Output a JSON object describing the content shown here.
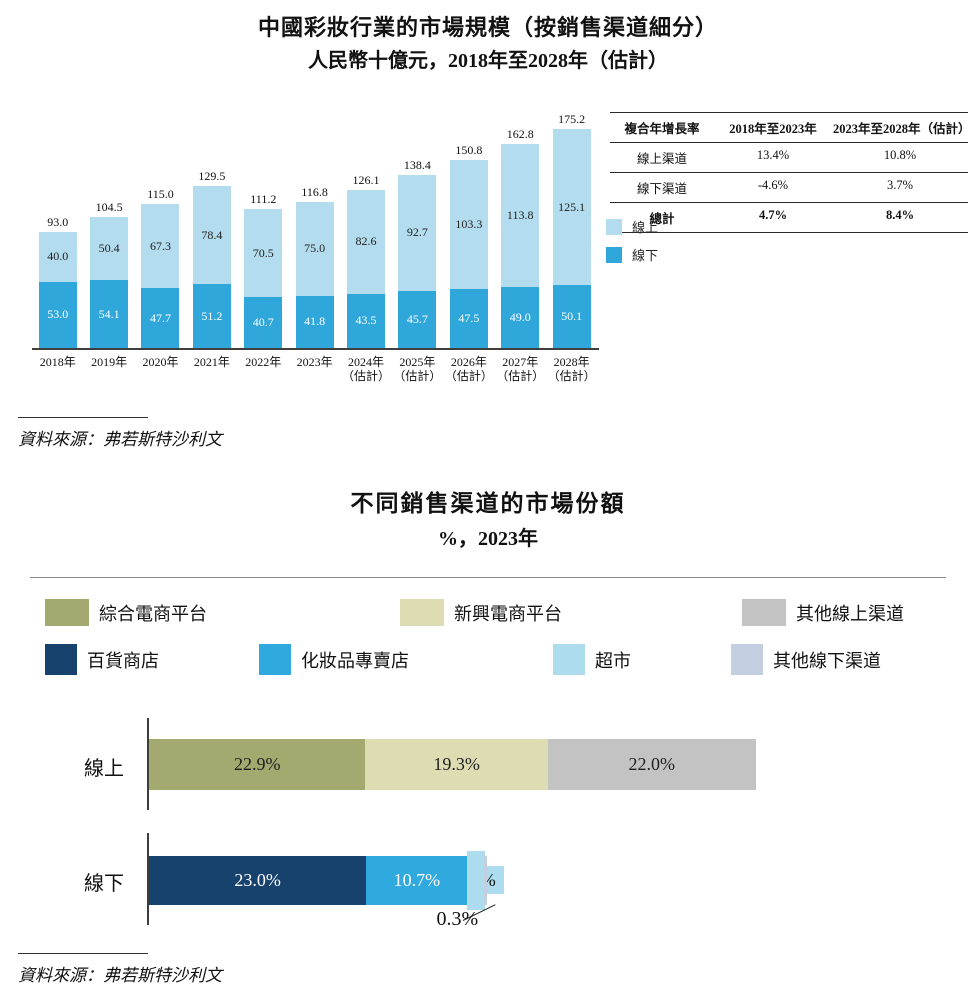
{
  "page": {
    "source": "資料來源：弗若斯特沙利文"
  },
  "cagr_table": {
    "headers": [
      "複合年增長率",
      "2018年至2023年",
      "2023年至2028年（估計）"
    ],
    "rows": [
      {
        "label": "線上渠道",
        "p1": "13.4%",
        "p2": "10.8%",
        "bold": false
      },
      {
        "label": "線下渠道",
        "p1": "-4.6%",
        "p2": "3.7%",
        "bold": false
      },
      {
        "label": "總計",
        "p1": "4.7%",
        "p2": "8.4%",
        "bold": true
      }
    ]
  },
  "chart_data": [
    {
      "type": "bar",
      "stacked": true,
      "title": "中國彩妝行業的市場規模（按銷售渠道細分）",
      "subtitle": "人民幣十億元，2018年至2028年（估計）",
      "unit": "人民幣十億元",
      "legend_position": "right",
      "categories": [
        {
          "line1": "2018年",
          "line2": ""
        },
        {
          "line1": "2019年",
          "line2": ""
        },
        {
          "line1": "2020年",
          "line2": ""
        },
        {
          "line1": "2021年",
          "line2": ""
        },
        {
          "line1": "2022年",
          "line2": ""
        },
        {
          "line1": "2023年",
          "line2": ""
        },
        {
          "line1": "2024年",
          "line2": "（估計）"
        },
        {
          "line1": "2025年",
          "line2": "（估計）"
        },
        {
          "line1": "2026年",
          "line2": "（估計）"
        },
        {
          "line1": "2027年",
          "line2": "（估計）"
        },
        {
          "line1": "2028年",
          "line2": "（估計）"
        }
      ],
      "series": [
        {
          "name": "線上",
          "color": "#b3dcee",
          "label_color": "#1f1f1f",
          "values": [
            40.0,
            50.4,
            67.3,
            78.4,
            70.5,
            75.0,
            82.6,
            92.7,
            103.3,
            113.8,
            125.1
          ]
        },
        {
          "name": "線下",
          "color": "#2fa7db",
          "label_color": "#ffffff",
          "values": [
            53.0,
            54.1,
            47.7,
            51.2,
            40.7,
            41.8,
            43.5,
            45.7,
            47.5,
            49.0,
            50.1
          ]
        }
      ],
      "totals": [
        93.0,
        104.5,
        115.0,
        129.5,
        111.2,
        116.8,
        126.1,
        138.4,
        150.8,
        162.8,
        175.2
      ]
    },
    {
      "type": "bar",
      "orientation": "horizontal",
      "stacked": true,
      "title": "不同銷售渠道的市場份額",
      "subtitle": "%，2023年",
      "legend_rows": [
        [
          {
            "name": "綜合電商平台",
            "color": "#a3a96f"
          },
          {
            "name": "新興電商平台",
            "color": "#dedcb2"
          },
          {
            "name": "其他線上渠道",
            "color": "#c3c3c3"
          }
        ],
        [
          {
            "name": "百貨商店",
            "color": "#17426e"
          },
          {
            "name": "化妝品專賣店",
            "color": "#2fa9de"
          },
          {
            "name": "超市",
            "color": "#addcee"
          },
          {
            "name": "其他線下渠道",
            "color": "#c3cfe0"
          }
        ]
      ],
      "rows": [
        {
          "label": "線上",
          "segments": [
            {
              "name": "綜合電商平台",
              "value": 22.9,
              "color": "#a3a96f",
              "label_color": "#1f1f1f"
            },
            {
              "name": "新興電商平台",
              "value": 19.3,
              "color": "#dedcb2",
              "label_color": "#1f1f1f"
            },
            {
              "name": "其他線上渠道",
              "value": 22.0,
              "color": "#c3c3c3",
              "label_color": "#1f1f1f"
            }
          ]
        },
        {
          "label": "線下",
          "segments": [
            {
              "name": "百貨商店",
              "value": 23.0,
              "color": "#17426e",
              "label_color": "#ffffff"
            },
            {
              "name": "化妝品專賣店",
              "value": 10.7,
              "color": "#2fa9de",
              "label_color": "#ffffff"
            },
            {
              "name": "超市",
              "value": 1.8,
              "color": "#addcee",
              "label_color": "#1f1f1f",
              "callout": "boxed"
            },
            {
              "name": "其他線下渠道",
              "value": 0.3,
              "color": "#c3cfe0",
              "label_color": "#1f1f1f",
              "callout": "leader-below"
            }
          ]
        }
      ]
    }
  ]
}
